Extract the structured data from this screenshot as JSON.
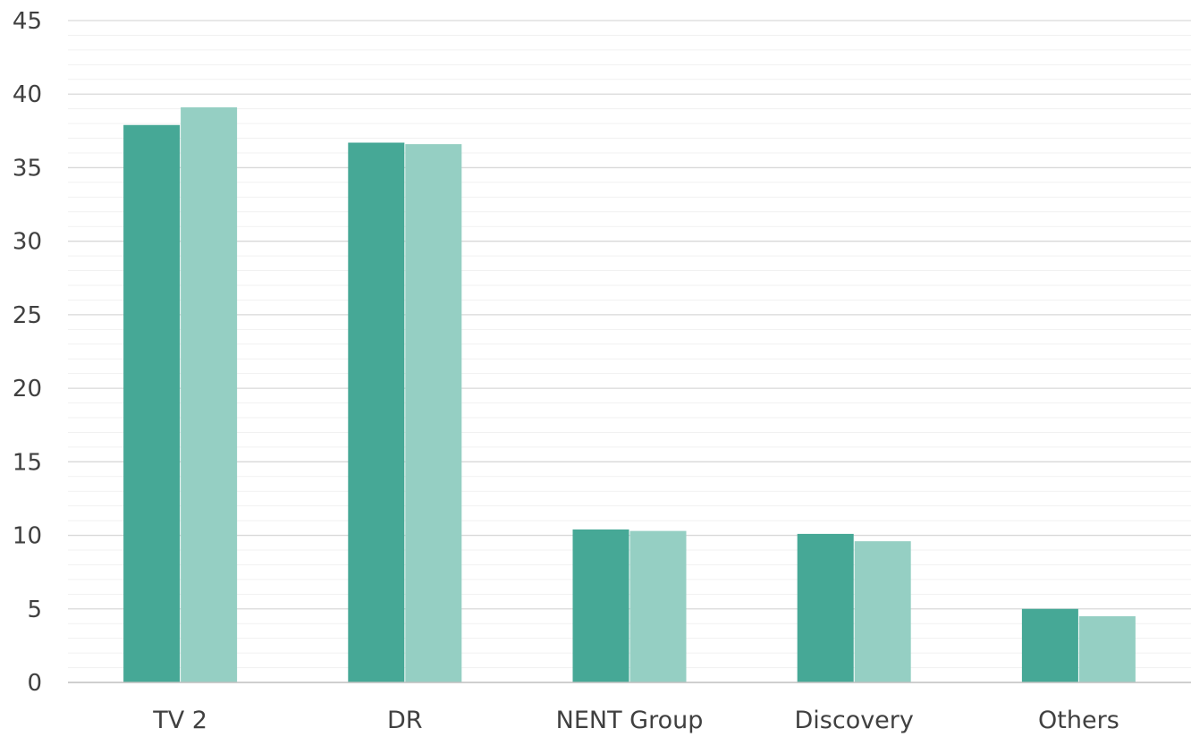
{
  "chart_data": {
    "type": "bar",
    "title": "",
    "xlabel": "",
    "ylabel": "",
    "categories": [
      "TV 2",
      "DR",
      "NENT Group",
      "Discovery",
      "Others"
    ],
    "series": [
      {
        "values": [
          37.9,
          36.7,
          10.4,
          10.1,
          5.0
        ],
        "color": "#46a896"
      },
      {
        "values": [
          39.1,
          36.6,
          10.3,
          9.6,
          4.5
        ],
        "color": "#95cfc3"
      }
    ],
    "ylim": [
      0,
      45
    ],
    "yticks": [
      "0",
      "5",
      "10",
      "15",
      "20",
      "25",
      "30",
      "35",
      "40",
      "45"
    ],
    "grid": true,
    "legend": "none"
  }
}
